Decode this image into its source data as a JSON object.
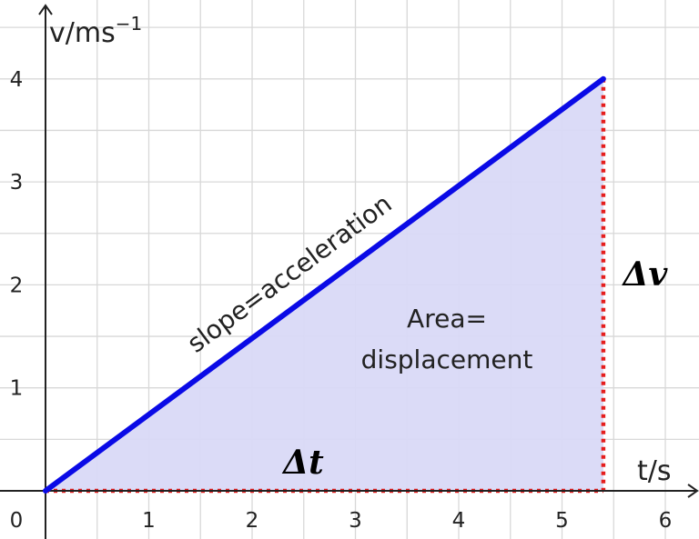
{
  "chart_data": {
    "type": "line",
    "x": [
      0,
      5.4
    ],
    "y": [
      0,
      4.0
    ],
    "xlim": [
      0,
      6.25
    ],
    "ylim": [
      0,
      4.5
    ],
    "xticks": [
      1,
      2,
      3,
      4,
      5,
      6
    ],
    "yticks": [
      1,
      2,
      3,
      4
    ],
    "origin_label": "0",
    "xlabel": "t/s",
    "ylabel": "v/ms",
    "ylabel_exponent": "−1",
    "grid": true,
    "shaded_area": true,
    "annotations": {
      "slope": "slope=acceleration",
      "area_line1": "Area=",
      "area_line2": "displacement",
      "delta_t": "Δt",
      "delta_v": "Δv"
    },
    "colors": {
      "line": "#0a0ae6",
      "fill": "#d9d9f7",
      "dotted": "#e51e1e",
      "grid": "#d8d8d8",
      "axis": "#222222"
    }
  }
}
